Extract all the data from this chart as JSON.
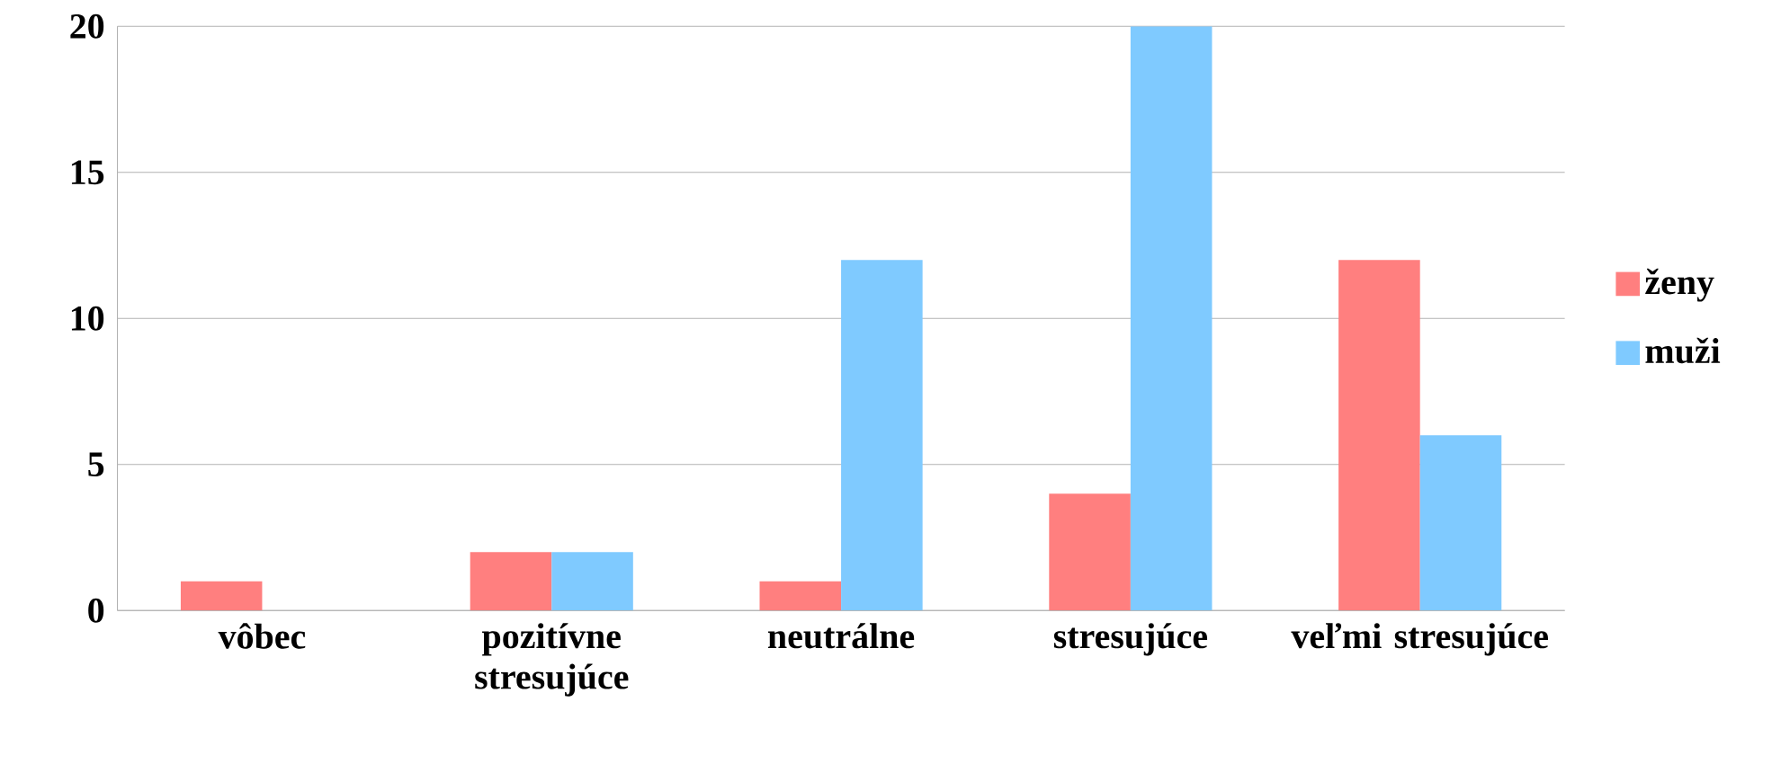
{
  "chart_data": {
    "type": "bar",
    "categories": [
      "vôbec",
      "pozitívne stresujúce",
      "neutrálne",
      "stresujúce",
      "veľmi stresujúce"
    ],
    "series": [
      {
        "name": "ženy",
        "color": "#ff7f7f",
        "values": [
          1,
          2,
          1,
          4,
          12
        ]
      },
      {
        "name": "muži",
        "color": "#7fcaff",
        "values": [
          0,
          2,
          12,
          20,
          6
        ]
      }
    ],
    "ylim": [
      0,
      20
    ],
    "yticks": [
      0,
      5,
      10,
      15,
      20
    ],
    "grid": "y",
    "legend": "right"
  }
}
